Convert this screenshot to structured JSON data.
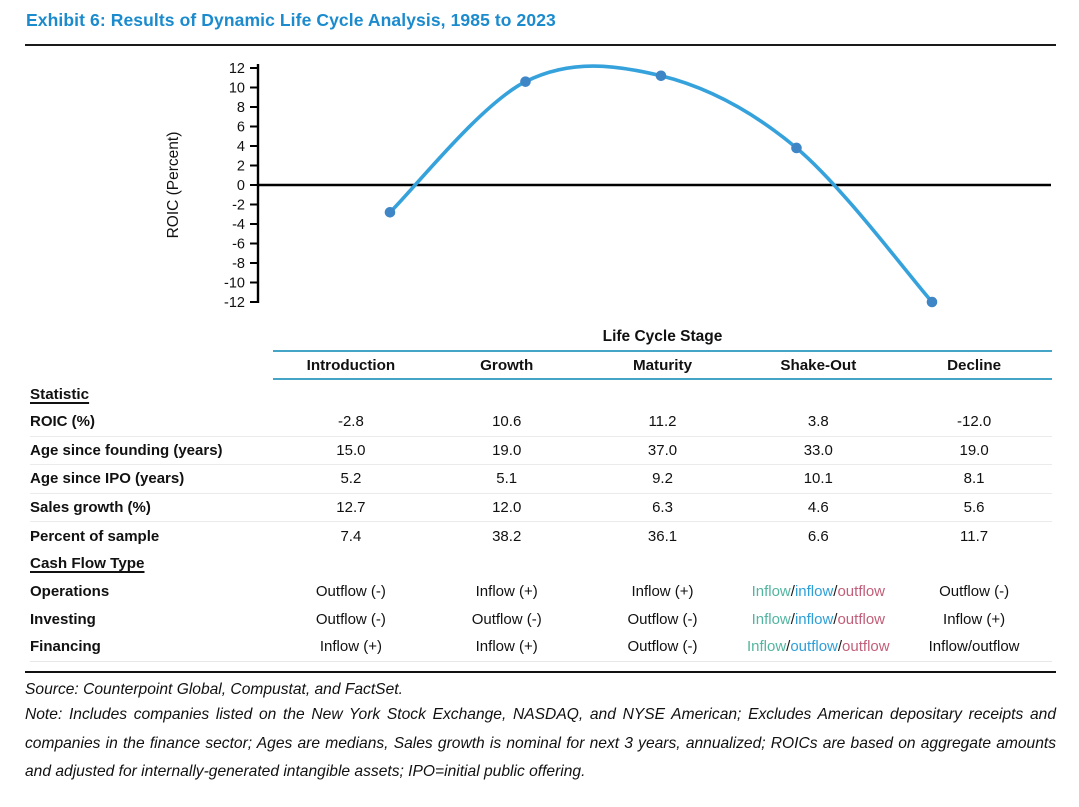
{
  "title": "Exhibit 6: Results of Dynamic Life Cycle Analysis, 1985 to 2023",
  "colors": {
    "title_blue": "#1B8BCE",
    "chart_line": "#36A2DC",
    "chart_marker": "#3E86C6",
    "axis_black": "#000000",
    "table_rule_blue": "#44A5C6",
    "cf_teal": "#52B5A0",
    "cf_blue": "#2E9FD8",
    "cf_rose": "#C25E79"
  },
  "chart_data": {
    "type": "line",
    "x": [
      "Introduction",
      "Growth",
      "Maturity",
      "Shake-Out",
      "Decline"
    ],
    "values": [
      -2.8,
      10.6,
      11.2,
      3.8,
      -12.0
    ],
    "title": "",
    "xlabel": "",
    "ylabel": "ROIC (Percent)",
    "ylim": [
      -12,
      12
    ],
    "ytick_step": 2,
    "yticks": [
      -12,
      -10,
      -8,
      -6,
      -4,
      -2,
      0,
      2,
      4,
      6,
      8,
      10,
      12
    ],
    "smooth": true,
    "zero_line": true,
    "grid": false,
    "legend": "none",
    "markers": true
  },
  "table": {
    "group_header": "Life Cycle Stage",
    "columns": [
      "Introduction",
      "Growth",
      "Maturity",
      "Shake-Out",
      "Decline"
    ],
    "sections": [
      {
        "label": "Statistic",
        "rows": [
          {
            "label": "ROIC (%)",
            "values": [
              "-2.8",
              "10.6",
              "11.2",
              "3.8",
              "-12.0"
            ]
          },
          {
            "label": "Age since founding (years)",
            "values": [
              "15.0",
              "19.0",
              "37.0",
              "33.0",
              "19.0"
            ]
          },
          {
            "label": "Age since IPO (years)",
            "values": [
              "5.2",
              "5.1",
              "9.2",
              "10.1",
              "8.1"
            ]
          },
          {
            "label": "Sales growth (%)",
            "values": [
              "12.7",
              "12.0",
              "6.3",
              "4.6",
              "5.6"
            ]
          },
          {
            "label": "Percent of sample",
            "values": [
              "7.4",
              "38.2",
              "36.1",
              "6.6",
              "11.7"
            ]
          }
        ]
      },
      {
        "label": "Cash Flow Type",
        "rows": [
          {
            "label": "Operations",
            "values": [
              "Outflow (-)",
              "Inflow (+)",
              "Inflow (+)",
              {
                "parts": [
                  {
                    "text": "Inflow",
                    "color": "teal"
                  },
                  {
                    "text": "/",
                    "color": "black"
                  },
                  {
                    "text": "inflow",
                    "color": "blue"
                  },
                  {
                    "text": "/",
                    "color": "black"
                  },
                  {
                    "text": "outflow",
                    "color": "rose"
                  }
                ]
              },
              "Outflow (-)"
            ]
          },
          {
            "label": "Investing",
            "values": [
              "Outflow (-)",
              "Outflow (-)",
              "Outflow (-)",
              {
                "parts": [
                  {
                    "text": "Inflow",
                    "color": "teal"
                  },
                  {
                    "text": "/",
                    "color": "black"
                  },
                  {
                    "text": "inflow",
                    "color": "blue"
                  },
                  {
                    "text": "/",
                    "color": "black"
                  },
                  {
                    "text": "outflow",
                    "color": "rose"
                  }
                ]
              },
              "Inflow (+)"
            ]
          },
          {
            "label": "Financing",
            "values": [
              "Inflow (+)",
              "Inflow (+)",
              "Outflow (-)",
              {
                "parts": [
                  {
                    "text": "Inflow",
                    "color": "teal"
                  },
                  {
                    "text": "/",
                    "color": "black"
                  },
                  {
                    "text": "outflow",
                    "color": "blue"
                  },
                  {
                    "text": "/",
                    "color": "black"
                  },
                  {
                    "text": "outflow",
                    "color": "rose"
                  }
                ]
              },
              "Inflow/outflow"
            ]
          }
        ]
      }
    ]
  },
  "footer": {
    "source": "Source: Counterpoint Global, Compustat, and FactSet.",
    "note": "Note: Includes companies listed on the New York Stock Exchange, NASDAQ, and NYSE American; Excludes American depositary receipts and companies in the finance sector; Ages are medians, Sales growth is nominal for next 3 years, annualized; ROICs are based on aggregate amounts and adjusted for internally-generated intangible assets; IPO=initial public offering."
  }
}
